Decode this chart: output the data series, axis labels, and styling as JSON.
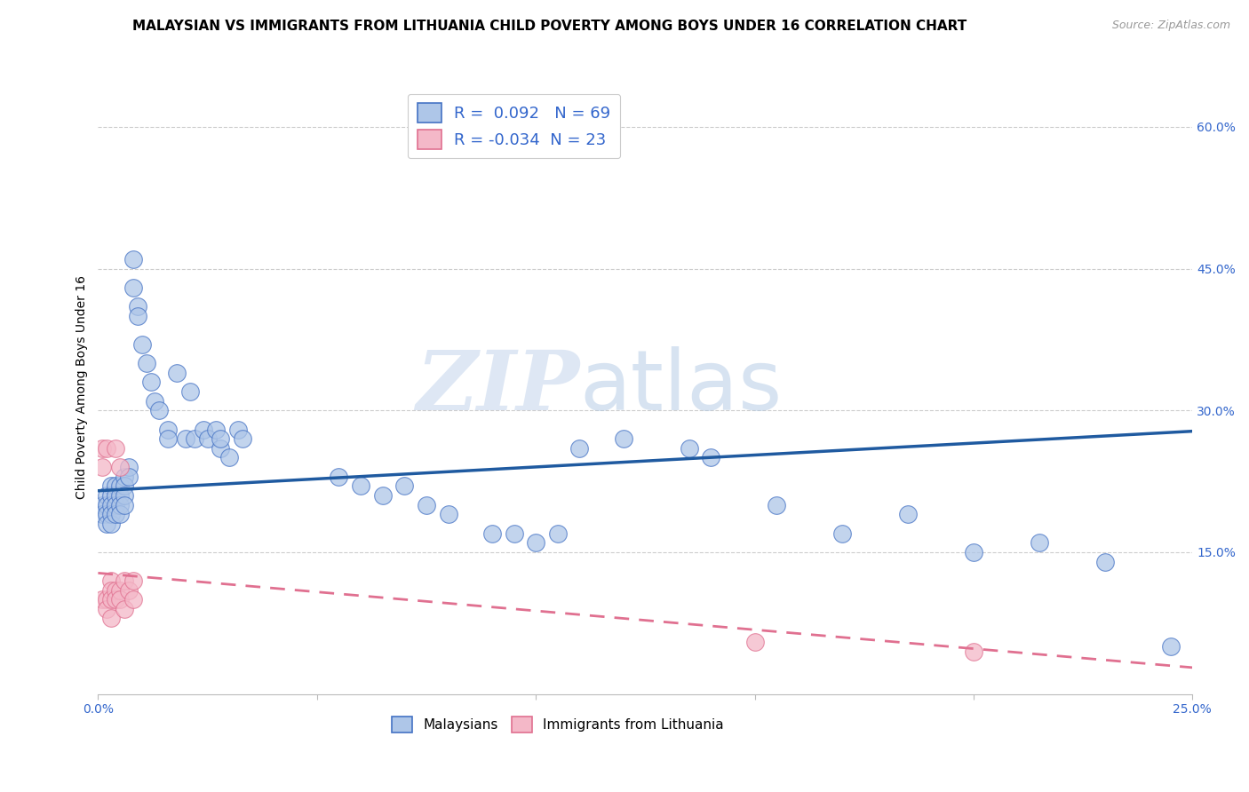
{
  "title": "MALAYSIAN VS IMMIGRANTS FROM LITHUANIA CHILD POVERTY AMONG BOYS UNDER 16 CORRELATION CHART",
  "source": "Source: ZipAtlas.com",
  "ylabel": "Child Poverty Among Boys Under 16",
  "xlim": [
    0,
    0.25
  ],
  "ylim": [
    0,
    0.65
  ],
  "xticks": [
    0.0,
    0.05,
    0.1,
    0.15,
    0.2,
    0.25
  ],
  "xtick_labels": [
    "0.0%",
    "",
    "",
    "",
    "",
    "25.0%"
  ],
  "yticks_right": [
    0.0,
    0.15,
    0.3,
    0.45,
    0.6
  ],
  "ytick_labels_right": [
    "",
    "15.0%",
    "30.0%",
    "45.0%",
    "60.0%"
  ],
  "blue_R": 0.092,
  "blue_N": 69,
  "pink_R": -0.034,
  "pink_N": 23,
  "blue_color": "#aec6e8",
  "blue_edge_color": "#4472c4",
  "pink_color": "#f4b8c8",
  "pink_edge_color": "#e07090",
  "blue_line_color": "#1f5aa0",
  "pink_line_color": "#e07090",
  "blue_line_y0": 0.215,
  "blue_line_y1": 0.278,
  "pink_line_y0": 0.128,
  "pink_line_y1": 0.028,
  "blue_scatter_x": [
    0.001,
    0.001,
    0.002,
    0.002,
    0.002,
    0.002,
    0.003,
    0.003,
    0.003,
    0.003,
    0.003,
    0.004,
    0.004,
    0.004,
    0.004,
    0.005,
    0.005,
    0.005,
    0.005,
    0.006,
    0.006,
    0.006,
    0.006,
    0.007,
    0.007,
    0.008,
    0.008,
    0.009,
    0.009,
    0.01,
    0.011,
    0.012,
    0.013,
    0.014,
    0.016,
    0.016,
    0.018,
    0.02,
    0.021,
    0.022,
    0.024,
    0.025,
    0.027,
    0.028,
    0.028,
    0.03,
    0.032,
    0.033,
    0.055,
    0.06,
    0.065,
    0.07,
    0.075,
    0.08,
    0.09,
    0.095,
    0.1,
    0.105,
    0.11,
    0.12,
    0.135,
    0.14,
    0.155,
    0.17,
    0.185,
    0.2,
    0.215,
    0.23,
    0.245
  ],
  "blue_scatter_y": [
    0.2,
    0.19,
    0.21,
    0.2,
    0.19,
    0.18,
    0.22,
    0.21,
    0.2,
    0.19,
    0.18,
    0.22,
    0.21,
    0.2,
    0.19,
    0.22,
    0.21,
    0.2,
    0.19,
    0.23,
    0.22,
    0.21,
    0.2,
    0.24,
    0.23,
    0.46,
    0.43,
    0.41,
    0.4,
    0.37,
    0.35,
    0.33,
    0.31,
    0.3,
    0.28,
    0.27,
    0.34,
    0.27,
    0.32,
    0.27,
    0.28,
    0.27,
    0.28,
    0.26,
    0.27,
    0.25,
    0.28,
    0.27,
    0.23,
    0.22,
    0.21,
    0.22,
    0.2,
    0.19,
    0.17,
    0.17,
    0.16,
    0.17,
    0.26,
    0.27,
    0.26,
    0.25,
    0.2,
    0.17,
    0.19,
    0.15,
    0.16,
    0.14,
    0.05
  ],
  "pink_scatter_x": [
    0.001,
    0.001,
    0.001,
    0.002,
    0.002,
    0.002,
    0.003,
    0.003,
    0.003,
    0.003,
    0.004,
    0.004,
    0.004,
    0.005,
    0.005,
    0.005,
    0.006,
    0.006,
    0.007,
    0.008,
    0.008,
    0.15,
    0.2
  ],
  "pink_scatter_y": [
    0.26,
    0.24,
    0.1,
    0.26,
    0.1,
    0.09,
    0.12,
    0.11,
    0.1,
    0.08,
    0.26,
    0.11,
    0.1,
    0.24,
    0.11,
    0.1,
    0.12,
    0.09,
    0.11,
    0.12,
    0.1,
    0.055,
    0.045
  ],
  "watermark_zip": "ZIP",
  "watermark_atlas": "atlas",
  "legend_blue_label": "Malaysians",
  "legend_pink_label": "Immigrants from Lithuania",
  "grid_color": "#cccccc",
  "title_fontsize": 11,
  "axis_label_fontsize": 10,
  "tick_fontsize": 10
}
